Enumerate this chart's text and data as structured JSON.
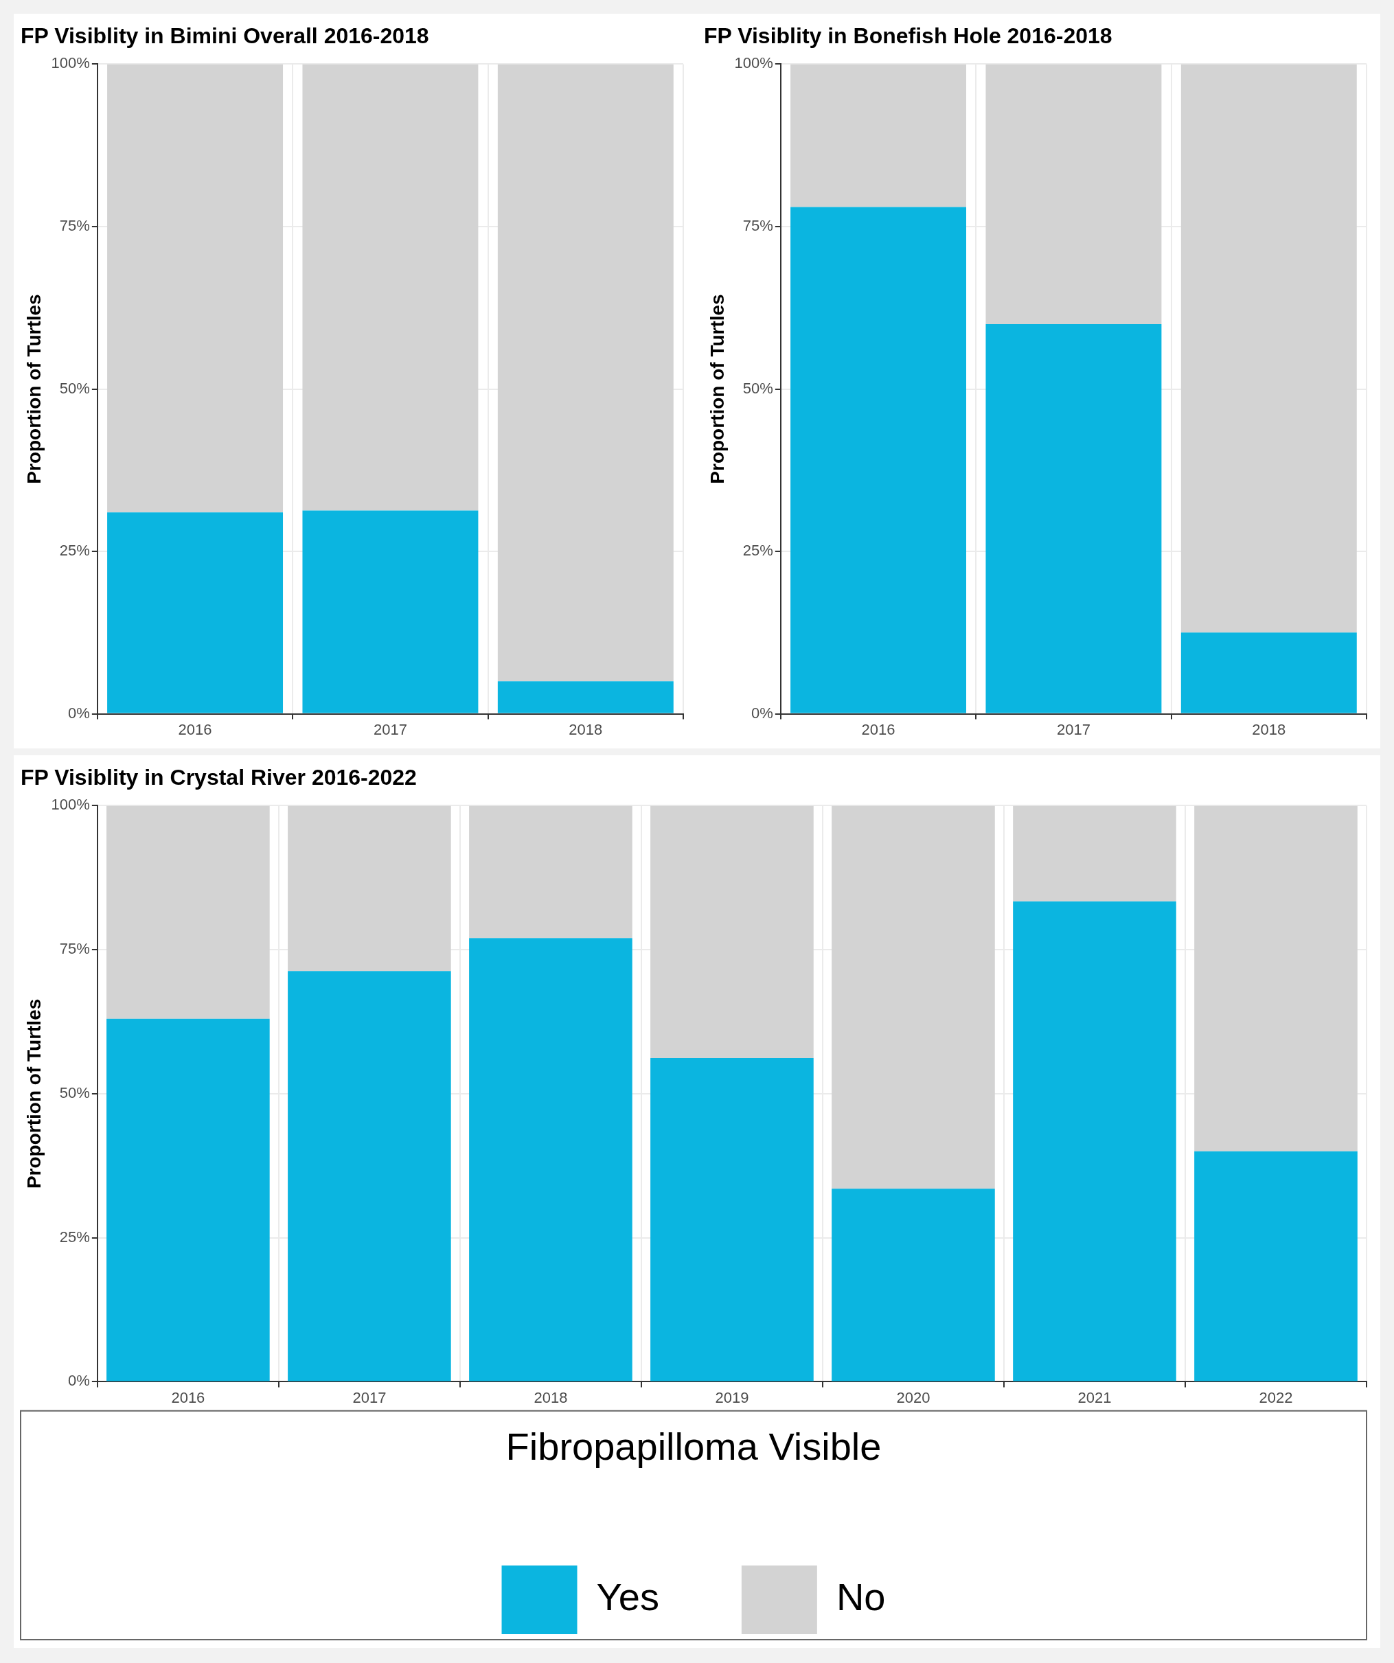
{
  "chart_data": [
    {
      "type": "bar",
      "title": "FP Visiblity in Bimini Overall 2016-2018",
      "ylabel": "Proportion of Turtles",
      "categories": [
        "2016",
        "2017",
        "2018"
      ],
      "stacked": true,
      "grid": true,
      "legend": false,
      "series": [
        {
          "color": "#0bb5e0",
          "values": [
            31,
            31.3,
            5
          ]
        },
        {
          "color": "#d3d3d3",
          "values": [
            69,
            68.7,
            95
          ]
        }
      ],
      "ylim": [
        0,
        100
      ],
      "yticks": [
        {
          "value": 0,
          "label": "0%"
        },
        {
          "value": 25,
          "label": "25%"
        },
        {
          "value": 50,
          "label": "50%"
        },
        {
          "value": 75,
          "label": "75%"
        },
        {
          "value": 100,
          "label": "100%"
        }
      ]
    },
    {
      "type": "bar",
      "title": "FP Visiblity in Bonefish Hole 2016-2018",
      "ylabel": "Proportion of Turtles",
      "categories": [
        "2016",
        "2017",
        "2018"
      ],
      "stacked": true,
      "grid": true,
      "legend": false,
      "series": [
        {
          "color": "#0bb5e0",
          "values": [
            78,
            60,
            12.5
          ]
        },
        {
          "color": "#d3d3d3",
          "values": [
            22,
            40,
            87.5
          ]
        }
      ],
      "ylim": [
        0,
        100
      ],
      "yticks": [
        {
          "value": 0,
          "label": "0%"
        },
        {
          "value": 25,
          "label": "25%"
        },
        {
          "value": 50,
          "label": "50%"
        },
        {
          "value": 75,
          "label": "75%"
        },
        {
          "value": 100,
          "label": "100%"
        }
      ]
    },
    {
      "type": "bar",
      "title": "FP Visiblity in Crystal River 2016-2022",
      "ylabel": "Proportion of Turtles",
      "categories": [
        "2016",
        "2017",
        "2018",
        "2019",
        "2020",
        "2021",
        "2022"
      ],
      "stacked": true,
      "grid": true,
      "legend": "bottom",
      "legend_title": "Fibropapilloma Visible",
      "series": [
        {
          "name": "Yes",
          "color": "#0bb5e0",
          "values": [
            63,
            71.3,
            77,
            56.2,
            33.5,
            83.4,
            40
          ]
        },
        {
          "name": "No",
          "color": "#d3d3d3",
          "values": [
            37,
            28.7,
            23,
            43.8,
            66.5,
            16.6,
            60
          ]
        }
      ],
      "ylim": [
        0,
        100
      ],
      "yticks": [
        {
          "value": 0,
          "label": "0%"
        },
        {
          "value": 25,
          "label": "25%"
        },
        {
          "value": 50,
          "label": "50%"
        },
        {
          "value": 75,
          "label": "75%"
        },
        {
          "value": 100,
          "label": "100%"
        }
      ]
    }
  ]
}
